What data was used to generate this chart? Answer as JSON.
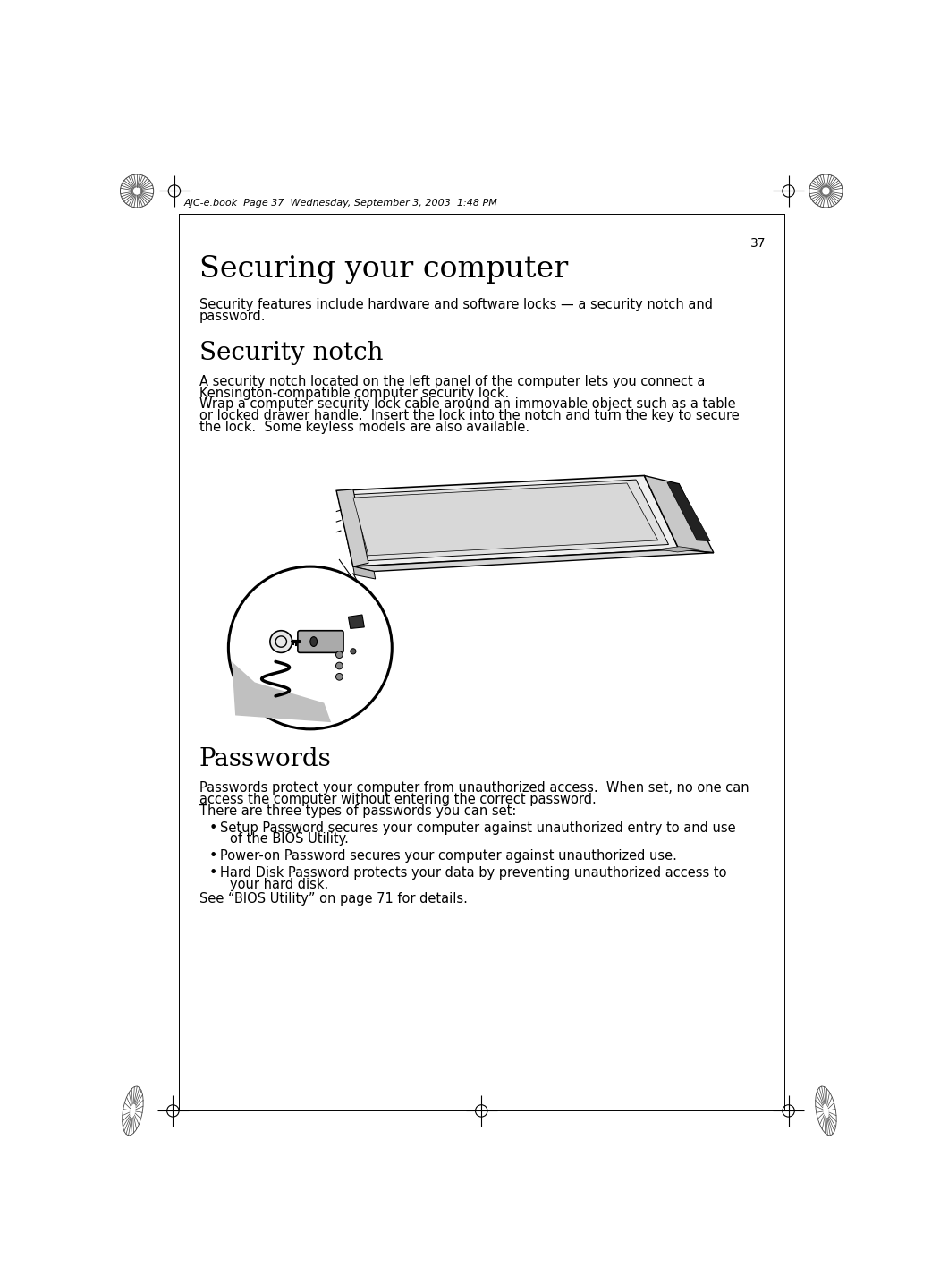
{
  "page_number": "37",
  "header_text": "AJC-e.book  Page 37  Wednesday, September 3, 2003  1:48 PM",
  "title": "Securing your computer",
  "intro_text": "Security features include hardware and software locks — a security notch and\npassword.",
  "section1_title": "Security notch",
  "section1_para1": "A security notch located on the left panel of the computer lets you connect a\nKensington-compatible computer security lock.",
  "section1_para2": "Wrap a computer security lock cable around an immovable object such as a table\nor locked drawer handle.  Insert the lock into the notch and turn the key to secure\nthe lock.  Some keyless models are also available.",
  "section2_title": "Passwords",
  "section2_para1": "Passwords protect your computer from unauthorized access.  When set, no one can\naccess the computer without entering the correct password.",
  "section2_para2": "There are three types of passwords you can set:",
  "bullet1": "Setup Password secures your computer against unauthorized entry to and use\nof the BIOS Utility.",
  "bullet2": "Power-on Password secures your computer against unauthorized use.",
  "bullet3": "Hard Disk Password protects your data by preventing unauthorized access to\nyour hard disk.",
  "footer_text": "See “BIOS Utility” on page 71 for details.",
  "bg_color": "#ffffff",
  "text_color": "#000000",
  "title_fontsize": 24,
  "section_fontsize": 20,
  "body_fontsize": 10.5,
  "header_fontsize": 8,
  "page_num_fontsize": 10
}
